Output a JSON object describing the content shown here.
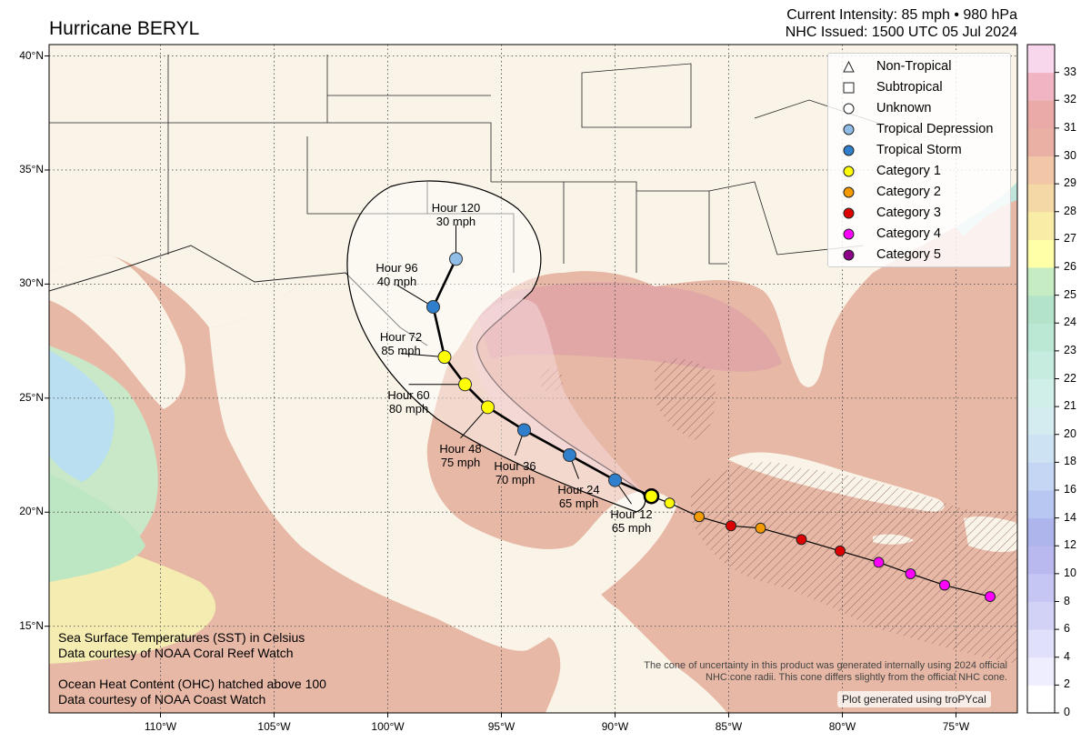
{
  "title": "Hurricane BERYL",
  "header": {
    "intensity": "Current Intensity: 85 mph • 980 hPa",
    "issued": "NHC Issued: 1500 UTC 05 Jul 2024"
  },
  "legend": [
    {
      "label": "Non-Tropical",
      "marker": "triangle",
      "color": "#ffffff"
    },
    {
      "label": "Subtropical",
      "marker": "square",
      "color": "#ffffff"
    },
    {
      "label": "Unknown",
      "marker": "circle",
      "color": "#ffffff"
    },
    {
      "label": "Tropical Depression",
      "marker": "circle",
      "color": "#8fbde8"
    },
    {
      "label": "Tropical Storm",
      "marker": "circle",
      "color": "#2f7fcc"
    },
    {
      "label": "Category 1",
      "marker": "circle",
      "color": "#ffff00"
    },
    {
      "label": "Category 2",
      "marker": "circle",
      "color": "#f29a00"
    },
    {
      "label": "Category 3",
      "marker": "circle",
      "color": "#dd0000"
    },
    {
      "label": "Category 4",
      "marker": "circle",
      "color": "#ff00ff"
    },
    {
      "label": "Category 5",
      "marker": "circle",
      "color": "#8b0087"
    }
  ],
  "notes": {
    "sst_line1": "Sea Surface Temperatures (SST) in Celsius",
    "sst_line2": "Data courtesy of NOAA Coral Reef Watch",
    "ohc_line1": "Ocean Heat Content (OHC) hatched above 100",
    "ohc_line2": "Data courtesy of NOAA Coast Watch",
    "cone_line1": "The cone of uncertainty in this product was generated internally using 2024 official",
    "cone_line2": "NHC cone radii. This cone differs slightly from the official NHC cone.",
    "credit": "Plot generated using troPYcal"
  },
  "axes": {
    "lon_labels": [
      "110°W",
      "105°W",
      "100°W",
      "95°W",
      "90°W",
      "85°W",
      "80°W",
      "75°W"
    ],
    "lon_values": [
      -110,
      -105,
      -100,
      -95,
      -90,
      -85,
      -80,
      -75
    ],
    "lat_labels": [
      "40°N",
      "35°N",
      "30°N",
      "25°N",
      "20°N",
      "15°N"
    ],
    "lat_values": [
      40,
      35,
      30,
      25,
      20,
      15
    ],
    "extent": {
      "lon": [
        -114.9,
        -72.3
      ],
      "lat": [
        11.2,
        40.5
      ]
    }
  },
  "colorbar": {
    "ticks": [
      "0",
      "2",
      "4",
      "6",
      "8",
      "10",
      "12",
      "14",
      "16",
      "18",
      "20",
      "21",
      "22",
      "23",
      "24",
      "25",
      "26",
      "27",
      "28",
      "29",
      "30",
      "31",
      "32",
      "33"
    ],
    "colors": [
      "#ffffff",
      "#eeeeff",
      "#e0e0fa",
      "#d2d2f6",
      "#c6c6f4",
      "#b9b9f0",
      "#aeb4ec",
      "#b8c6f2",
      "#c4d6f4",
      "#cde2f3",
      "#d4ecf0",
      "#cfefe8",
      "#c6ece0",
      "#bbe8d4",
      "#b3e4c9",
      "#c6ecc4",
      "#ffffa8",
      "#f8eca6",
      "#f4d9a6",
      "#f1c7a8",
      "#ebb0a4",
      "#e9aaa8",
      "#f0b4c2",
      "#f8d6ec"
    ]
  },
  "past_track": [
    {
      "lon": -73.5,
      "lat": 16.3,
      "cat": "Category 4"
    },
    {
      "lon": -75.5,
      "lat": 16.8,
      "cat": "Category 4"
    },
    {
      "lon": -77.0,
      "lat": 17.3,
      "cat": "Category 4"
    },
    {
      "lon": -78.4,
      "lat": 17.8,
      "cat": "Category 4"
    },
    {
      "lon": -80.1,
      "lat": 18.3,
      "cat": "Category 3"
    },
    {
      "lon": -81.8,
      "lat": 18.8,
      "cat": "Category 3"
    },
    {
      "lon": -83.6,
      "lat": 19.3,
      "cat": "Category 2"
    },
    {
      "lon": -84.9,
      "lat": 19.4,
      "cat": "Category 3"
    },
    {
      "lon": -86.3,
      "lat": 19.8,
      "cat": "Category 2"
    },
    {
      "lon": -87.6,
      "lat": 20.4,
      "cat": "Category 1"
    }
  ],
  "current_position": {
    "lon": -88.4,
    "lat": 20.7,
    "cat": "Category 1"
  },
  "forecast": [
    {
      "label": "Hour 12",
      "wind": "65 mph",
      "lon": -90.0,
      "lat": 21.4,
      "cat": "Tropical Storm"
    },
    {
      "label": "Hour 24",
      "wind": "65 mph",
      "lon": -92.0,
      "lat": 22.5,
      "cat": "Tropical Storm"
    },
    {
      "label": "Hour 36",
      "wind": "70 mph",
      "lon": -94.0,
      "lat": 23.6,
      "cat": "Tropical Storm"
    },
    {
      "label": "Hour 48",
      "wind": "75 mph",
      "lon": -95.6,
      "lat": 24.6,
      "cat": "Category 1"
    },
    {
      "label": "Hour 60",
      "wind": "80 mph",
      "lon": -96.6,
      "lat": 25.6,
      "cat": "Category 1"
    },
    {
      "label": "Hour 72",
      "wind": "85 mph",
      "lon": -97.5,
      "lat": 26.8,
      "cat": "Category 1"
    },
    {
      "label": "Hour 96",
      "wind": "40 mph",
      "lon": -98.0,
      "lat": 29.0,
      "cat": "Tropical Storm"
    },
    {
      "label": "Hour 120",
      "wind": "30 mph",
      "lon": -97.0,
      "lat": 31.1,
      "cat": "Tropical Depression"
    }
  ]
}
